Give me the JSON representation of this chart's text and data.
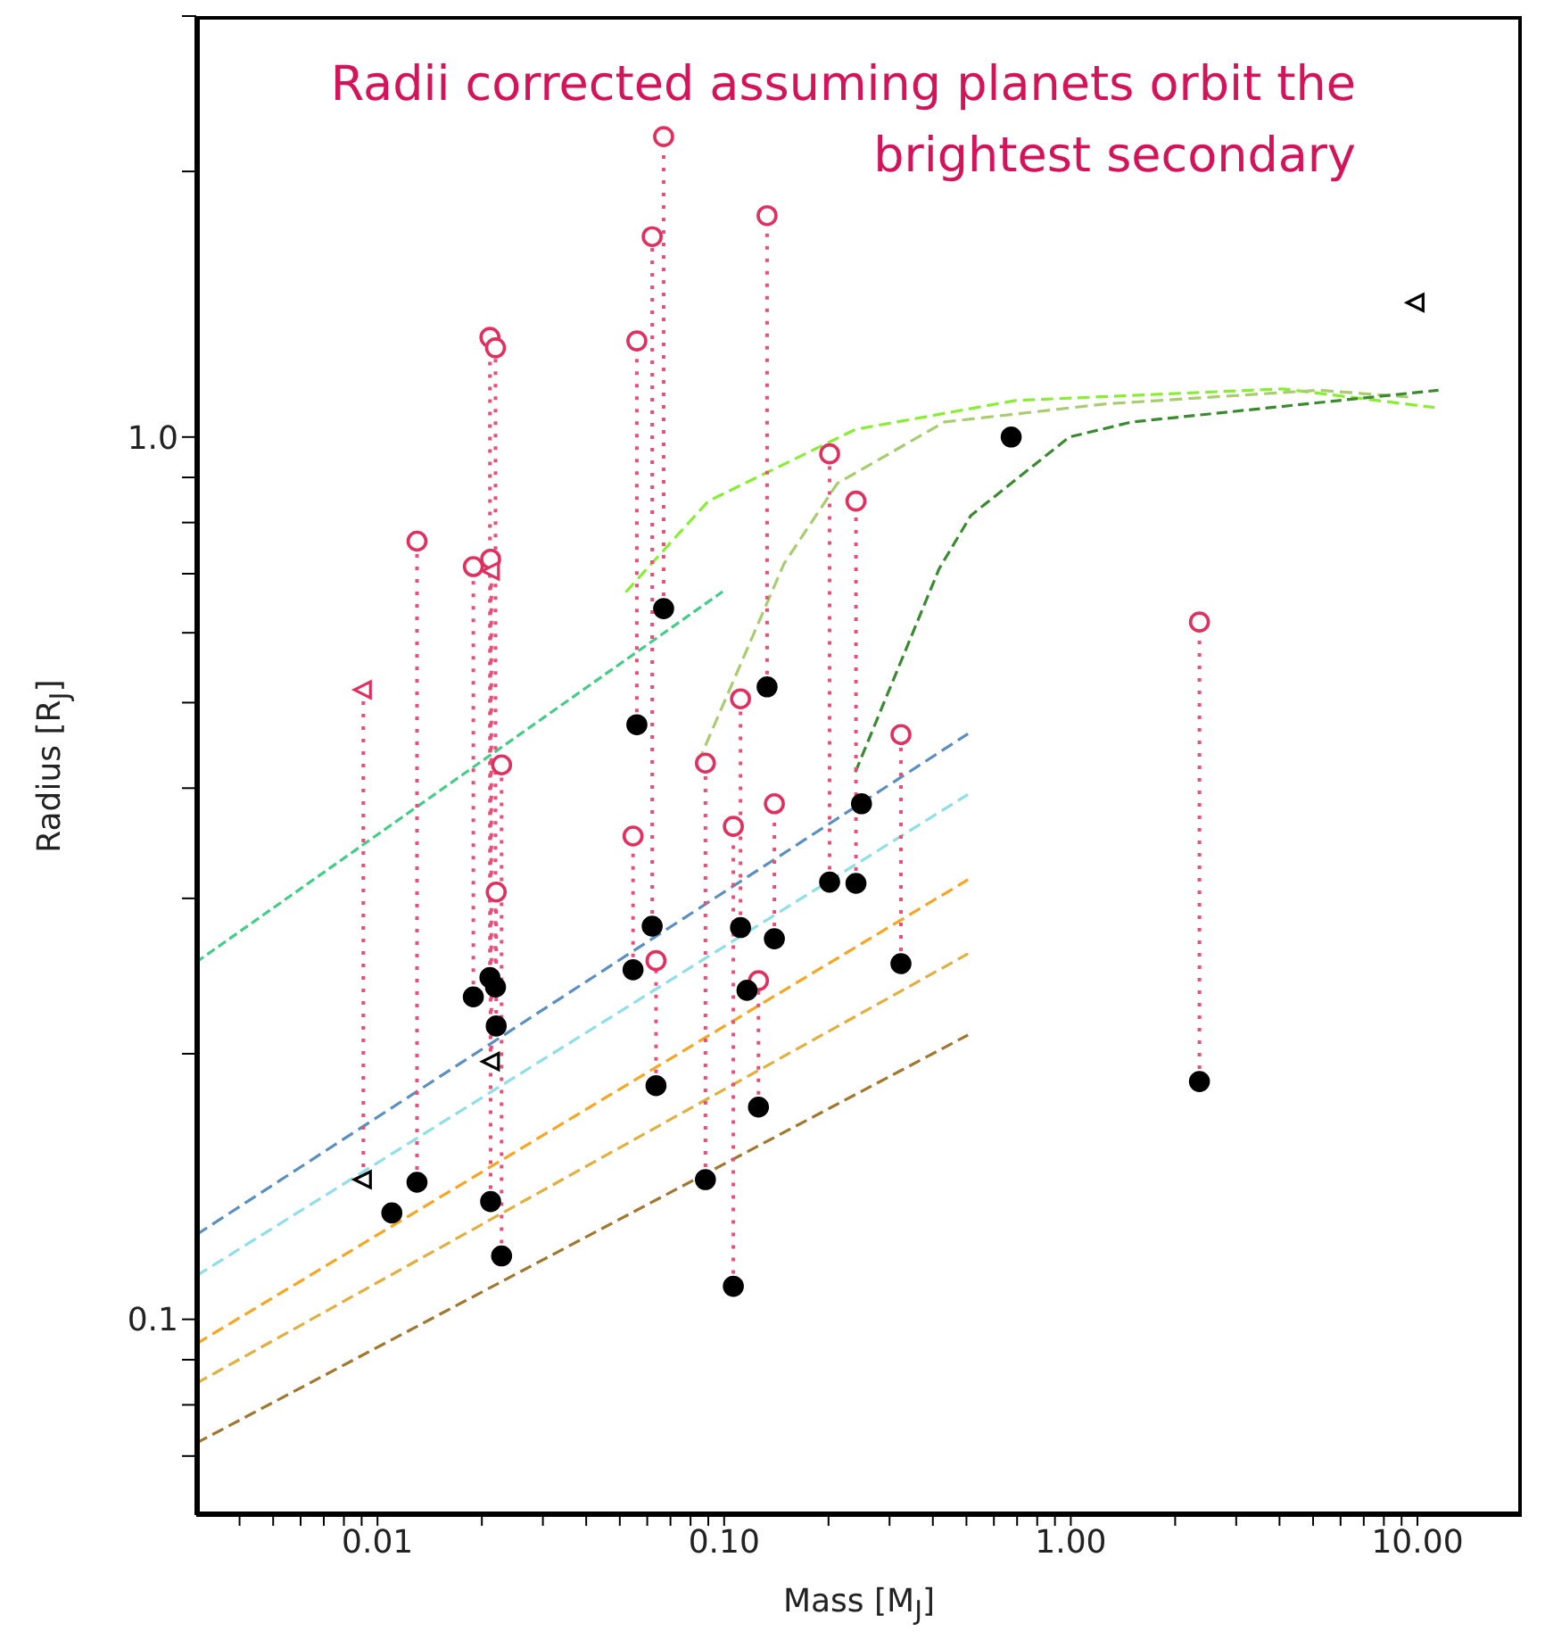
{
  "chart_data": {
    "type": "scatter",
    "title": "Radii corrected assuming planets orbit the brightest secondary",
    "xlabel": "Mass [M$_{J}$]",
    "ylabel": "Radius [R$_{J}$]",
    "log": "xy",
    "xlim": [
      0.003,
      20
    ],
    "ylim": [
      0.06,
      3
    ],
    "xticks": [
      {
        "value": 0.004,
        "label": null
      },
      {
        "value": 0.005,
        "label": null
      },
      {
        "value": 0.006,
        "label": null
      },
      {
        "value": 0.007,
        "label": null
      },
      {
        "value": 0.008,
        "label": null
      },
      {
        "value": 0.009,
        "label": null
      },
      0.01,
      {
        "value": 0.02,
        "label": null
      },
      {
        "value": 0.03,
        "label": null
      },
      {
        "value": 0.04,
        "label": null
      },
      {
        "value": 0.05,
        "label": null
      },
      {
        "value": 0.06,
        "label": null
      },
      {
        "value": 0.07,
        "label": null
      },
      {
        "value": 0.08,
        "label": null
      },
      {
        "value": 0.09,
        "label": null
      },
      {
        "value": 0.1,
        "label": "0.10"
      },
      {
        "value": 0.2,
        "label": null
      },
      {
        "value": 0.3,
        "label": null
      },
      {
        "value": 0.4,
        "label": null
      },
      {
        "value": 0.5,
        "label": null
      },
      {
        "value": 0.6,
        "label": null
      },
      {
        "value": 0.7,
        "label": null
      },
      {
        "value": 0.8,
        "label": null
      },
      {
        "value": 0.9,
        "label": null
      },
      {
        "value": 1,
        "label": "1.00"
      },
      {
        "value": 2,
        "label": null
      },
      {
        "value": 3,
        "label": null
      },
      {
        "value": 4,
        "label": null
      },
      {
        "value": 5,
        "label": null
      },
      {
        "value": 6,
        "label": null
      },
      {
        "value": 7,
        "label": null
      },
      {
        "value": 8,
        "label": null
      },
      {
        "value": 9,
        "label": null
      },
      {
        "value": 10,
        "label": "10.00"
      }
    ],
    "yticks": [
      {
        "value": 0.07,
        "label": null
      },
      {
        "value": 0.08,
        "label": null
      },
      {
        "value": 0.09,
        "label": null
      },
      0.1,
      {
        "value": 0.2,
        "label": null
      },
      {
        "value": 0.3,
        "label": null
      },
      {
        "value": 0.4,
        "label": null
      },
      {
        "value": 0.5,
        "label": null
      },
      {
        "value": 0.6,
        "label": null
      },
      {
        "value": 0.7,
        "label": null
      },
      {
        "value": 0.8,
        "label": null
      },
      {
        "value": 0.9,
        "label": null
      },
      {
        "value": 1,
        "label": "1.0"
      },
      {
        "value": 2,
        "label": null
      },
      {
        "value": 3,
        "label": null
      }
    ],
    "series": [
      {
        "type": "line",
        "color": "#44cc88",
        "line_style": "dashed",
        "marker": "none",
        "x": [
          0.003,
          0.099
        ],
        "values": [
          0.254,
          0.668
        ]
      },
      {
        "type": "line",
        "color": "#5b8fc0",
        "line_style": "dashed",
        "marker": "none",
        "x": [
          0.003,
          0.505
        ],
        "values": [
          0.1247,
          0.461
        ]
      },
      {
        "type": "line",
        "color": "#8fdfe8",
        "line_style": "dashed",
        "marker": "none",
        "x": [
          0.003,
          0.505
        ],
        "values": [
          0.112,
          0.3935
        ]
      },
      {
        "type": "line",
        "color": "#f5a623",
        "line_style": "dashed",
        "marker": "none",
        "x": [
          0.003,
          0.505
        ],
        "values": [
          0.0938,
          0.315
        ]
      },
      {
        "type": "line",
        "color": "#e0b040",
        "line_style": "dashed",
        "marker": "none",
        "x": [
          0.003,
          0.505
        ],
        "values": [
          0.0846,
          0.2596
        ]
      },
      {
        "type": "line",
        "color": "#a07830",
        "line_style": "dashed",
        "marker": "none",
        "x": [
          0.003,
          0.505
        ],
        "values": [
          0.0724,
          0.21
        ]
      },
      {
        "type": "line",
        "color": "#88ee33",
        "line_style": "dashed",
        "marker": "none",
        "x": [
          0.052,
          0.09,
          0.239,
          0.693,
          4.09,
          11.2
        ],
        "values": [
          0.667,
          0.846,
          1.02,
          1.1,
          1.134,
          1.08
        ]
      },
      {
        "type": "line",
        "color": "#a8cc70",
        "line_style": "dashed",
        "marker": "none",
        "x": [
          0.084,
          0.149,
          0.212,
          0.432,
          1.25,
          5.2,
          9.4
        ],
        "values": [
          0.427,
          0.719,
          0.886,
          1.04,
          1.09,
          1.13,
          1.11
        ]
      },
      {
        "type": "line",
        "color": "#3a8a30",
        "line_style": "dashed",
        "marker": "none",
        "x": [
          0.239,
          0.417,
          0.515,
          0.99,
          1.5,
          11.5
        ],
        "values": [
          0.417,
          0.709,
          0.815,
          1.0,
          1.04,
          1.13
        ]
      },
      {
        "type": "line",
        "color": "#e8507a",
        "line_style": "dotted",
        "marker": "none",
        "x": [
          0.0091,
          0.0091
        ],
        "values": [
          0.144,
          0.517
        ]
      },
      {
        "type": "line",
        "color": "#e8507a",
        "line_style": "dotted",
        "marker": "none",
        "x": [
          0.013,
          0.013
        ],
        "values": [
          0.143,
          0.762
        ]
      },
      {
        "type": "line",
        "color": "#e8507a",
        "line_style": "dotted",
        "marker": "none",
        "x": [
          0.0189,
          0.0189
        ],
        "values": [
          0.232,
          0.713
        ]
      },
      {
        "type": "line",
        "color": "#e8507a",
        "line_style": "dotted",
        "marker": "none",
        "x": [
          0.0211,
          0.0211
        ],
        "values": [
          0.244,
          1.297
        ]
      },
      {
        "type": "line",
        "color": "#e8507a",
        "line_style": "dotted",
        "marker": "none",
        "x": [
          0.0219,
          0.0219
        ],
        "values": [
          0.238,
          1.262
        ]
      },
      {
        "type": "line",
        "color": "#e8507a",
        "line_style": "dotted",
        "marker": "none",
        "x": [
          0.0212,
          0.0212
        ],
        "values": [
          0.136,
          0.727
        ]
      },
      {
        "type": "line",
        "color": "#e8507a",
        "line_style": "dotted",
        "marker": "none",
        "x": [
          0.0213,
          0.0213
        ],
        "values": [
          0.196,
          0.705
        ]
      },
      {
        "type": "line",
        "color": "#e8507a",
        "line_style": "dotted",
        "marker": "none",
        "x": [
          0.0228,
          0.0228
        ],
        "values": [
          0.118,
          0.425
        ]
      },
      {
        "type": "line",
        "color": "#e8507a",
        "line_style": "dotted",
        "marker": "none",
        "x": [
          0.022,
          0.022
        ],
        "values": [
          0.215,
          0.305
        ]
      },
      {
        "type": "line",
        "color": "#e8507a",
        "line_style": "dotted",
        "marker": "none",
        "x": [
          0.056,
          0.056
        ],
        "values": [
          0.472,
          1.285
        ]
      },
      {
        "type": "line",
        "color": "#e8507a",
        "line_style": "dotted",
        "marker": "none",
        "x": [
          0.0546,
          0.0546
        ],
        "values": [
          0.249,
          0.353
        ]
      },
      {
        "type": "line",
        "color": "#e8507a",
        "line_style": "dotted",
        "marker": "none",
        "x": [
          0.062,
          0.062
        ],
        "values": [
          0.279,
          1.687
        ]
      },
      {
        "type": "line",
        "color": "#e8507a",
        "line_style": "dotted",
        "marker": "none",
        "x": [
          0.0669,
          0.0669
        ],
        "values": [
          0.639,
          2.19
        ]
      },
      {
        "type": "line",
        "color": "#e8507a",
        "line_style": "dotted",
        "marker": "none",
        "x": [
          0.0636,
          0.0636
        ],
        "values": [
          0.184,
          0.255
        ]
      },
      {
        "type": "line",
        "color": "#e8507a",
        "line_style": "dotted",
        "marker": "none",
        "x": [
          0.0883,
          0.0883
        ],
        "values": [
          0.144,
          0.427
        ]
      },
      {
        "type": "line",
        "color": "#e8507a",
        "line_style": "dotted",
        "marker": "none",
        "x": [
          0.133,
          0.133
        ],
        "values": [
          0.521,
          1.782
        ]
      },
      {
        "type": "line",
        "color": "#e8507a",
        "line_style": "dotted",
        "marker": "none",
        "x": [
          0.1063,
          0.1063
        ],
        "values": [
          0.109,
          0.362
        ]
      },
      {
        "type": "line",
        "color": "#e8507a",
        "line_style": "dotted",
        "marker": "none",
        "x": [
          0.1115,
          0.1115
        ],
        "values": [
          0.278,
          0.505
        ]
      },
      {
        "type": "line",
        "color": "#e8507a",
        "line_style": "dotted",
        "marker": "none",
        "x": [
          0.1256,
          0.1256
        ],
        "values": [
          0.174,
          0.242
        ]
      },
      {
        "type": "line",
        "color": "#e8507a",
        "line_style": "dotted",
        "marker": "none",
        "x": [
          0.1396,
          0.1396
        ],
        "values": [
          0.27,
          0.384
        ]
      },
      {
        "type": "line",
        "color": "#e8507a",
        "line_style": "dotted",
        "marker": "none",
        "x": [
          0.2015,
          0.2015
        ],
        "values": [
          0.313,
          0.957
        ]
      },
      {
        "type": "line",
        "color": "#e8507a",
        "line_style": "dotted",
        "marker": "none",
        "x": [
          0.24,
          0.24
        ],
        "values": [
          0.312,
          0.846
        ]
      },
      {
        "type": "line",
        "color": "#e8507a",
        "line_style": "dotted",
        "marker": "none",
        "x": [
          0.3236,
          0.3236
        ],
        "values": [
          0.253,
          0.46
        ]
      },
      {
        "type": "line",
        "color": "#e8507a",
        "line_style": "dotted",
        "marker": "none",
        "x": [
          2.35,
          2.35
        ],
        "values": [
          0.186,
          0.617
        ]
      },
      {
        "color": "#e0305f",
        "marker": "circle",
        "x": [
          0.013,
          0.0189,
          0.0211,
          0.0219,
          0.0212,
          0.0228,
          0.022,
          0.056,
          0.0546,
          0.062,
          0.0669,
          0.0636,
          0.0883,
          0.133,
          0.1063,
          0.1115,
          0.1256,
          0.1396,
          0.2015,
          0.24,
          0.3236,
          2.35
        ],
        "values": [
          0.762,
          0.713,
          1.297,
          1.262,
          0.727,
          0.425,
          0.305,
          1.285,
          0.353,
          1.687,
          2.19,
          0.255,
          0.427,
          1.782,
          0.362,
          0.505,
          0.242,
          0.384,
          0.957,
          0.846,
          0.46,
          0.617
        ]
      },
      {
        "color": "#e0305f",
        "marker": "triangle",
        "x": [
          0.0091,
          0.0213
        ],
        "values": [
          0.517,
          0.705
        ]
      },
      {
        "color": "#000000",
        "marker": "triangle",
        "x": [
          0.0091,
          0.0213,
          9.9
        ],
        "values": [
          0.144,
          0.196,
          1.42
        ]
      },
      {
        "color": "#000000",
        "marker": "circle",
        "x": [
          0.011,
          0.013,
          0.0189,
          0.0211,
          0.0219,
          0.0212,
          0.0228,
          0.022,
          0.056,
          0.0546,
          0.062,
          0.0669,
          0.0636,
          0.0883,
          0.133,
          0.1063,
          0.1115,
          0.1164,
          0.1256,
          0.1396,
          0.2015,
          0.24,
          0.249,
          0.3236,
          0.673,
          2.35
        ],
        "values": [
          0.132,
          0.143,
          0.232,
          0.244,
          0.238,
          0.136,
          0.118,
          0.215,
          0.472,
          0.249,
          0.279,
          0.639,
          0.184,
          0.144,
          0.521,
          0.109,
          0.278,
          0.236,
          0.174,
          0.27,
          0.313,
          0.312,
          0.384,
          0.253,
          1.0,
          0.186
        ]
      }
    ]
  }
}
